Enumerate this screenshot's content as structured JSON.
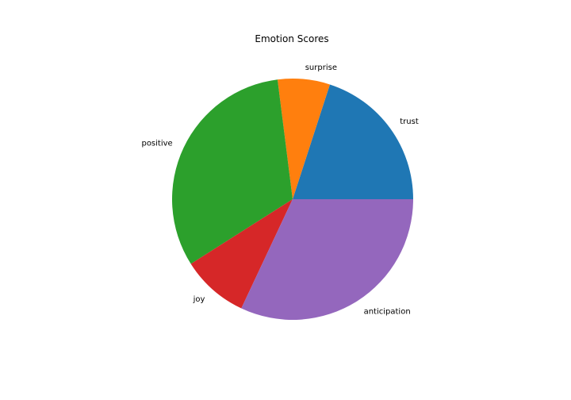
{
  "chart_data": {
    "type": "pie",
    "title": "Emotion Scores",
    "start_angle_deg": 0,
    "direction": "counterclockwise",
    "slices": [
      {
        "label": "trust",
        "value": 20,
        "color": "#1f77b4"
      },
      {
        "label": "surprise",
        "value": 7,
        "color": "#ff7f0e"
      },
      {
        "label": "positive",
        "value": 32,
        "color": "#2ca02c"
      },
      {
        "label": "joy",
        "value": 9,
        "color": "#d62728"
      },
      {
        "label": "anticipation",
        "value": 32,
        "color": "#9467bd"
      }
    ]
  }
}
